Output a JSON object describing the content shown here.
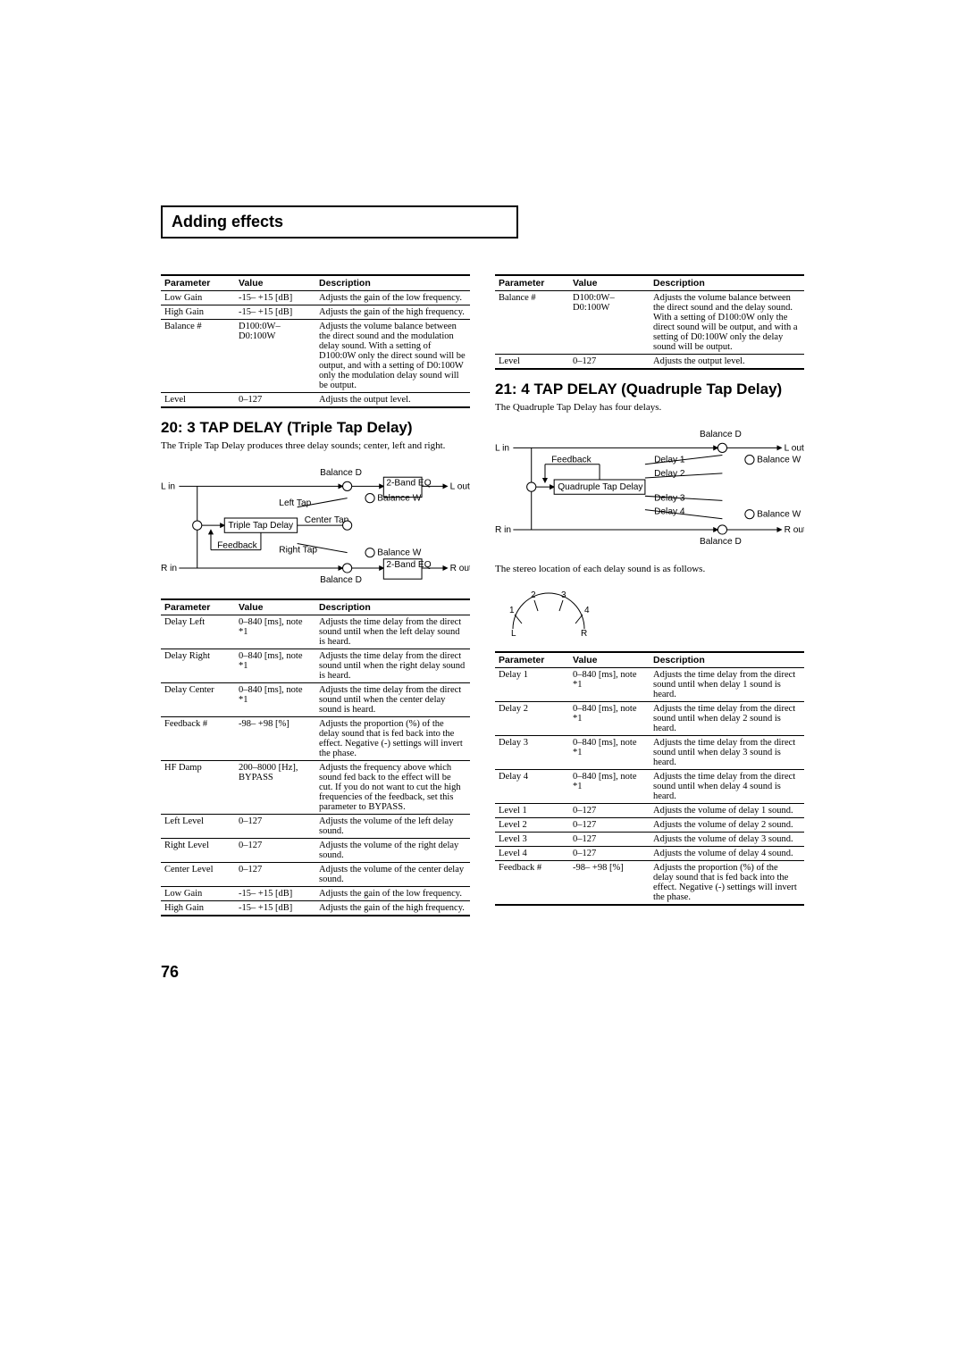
{
  "header": "Adding effects",
  "page_number": "76",
  "left": {
    "table_prev": {
      "headers": [
        "Parameter",
        "Value",
        "Description"
      ],
      "rows": [
        [
          "Low Gain",
          "-15– +15 [dB]",
          "Adjusts the gain of the low frequency."
        ],
        [
          "High Gain",
          "-15– +15 [dB]",
          "Adjusts the gain of the high frequency."
        ],
        [
          "Balance #",
          "D100:0W– D0:100W",
          "Adjusts the volume balance between the direct sound and the modulation delay sound. With a setting of D100:0W only the direct sound will be output, and with a setting of D0:100W only the modulation delay sound will be output."
        ],
        [
          "Level",
          "0–127",
          "Adjusts the output level."
        ]
      ]
    },
    "section_title": "20: 3 TAP DELAY (Triple Tap Delay)",
    "section_intro": "The Triple Tap Delay produces three delay sounds; center, left and right.",
    "diagram20": {
      "labels": {
        "lin": "L in",
        "lout": "L out",
        "rin": "R in",
        "rout": "R out",
        "balD": "Balance D",
        "balW": "Balance W",
        "leftTap": "Left Tap",
        "rightTap": "Right Tap",
        "centerTap": "Center Tap",
        "ttd": "Triple Tap Delay",
        "fb": "Feedback",
        "eq": "2-Band EQ"
      }
    },
    "table20": {
      "headers": [
        "Parameter",
        "Value",
        "Description"
      ],
      "rows": [
        [
          "Delay Left",
          "0–840 [ms], note *1",
          "Adjusts the time delay from the direct sound until when the left delay sound is heard."
        ],
        [
          "Delay Right",
          "0–840 [ms], note *1",
          "Adjusts the time delay from the direct sound until when the right delay sound is heard."
        ],
        [
          "Delay Center",
          "0–840 [ms], note *1",
          "Adjusts the time delay from the direct sound until when the center delay sound is heard."
        ],
        [
          "Feedback #",
          "-98– +98 [%]",
          "Adjusts the proportion (%) of the delay sound that is fed back into the effect. Negative (-) settings will invert the phase."
        ],
        [
          "HF Damp",
          "200–8000 [Hz], BYPASS",
          "Adjusts the frequency above which sound fed back to the effect will be cut. If you do not want to cut the high frequencies of the feedback, set this parameter to BYPASS."
        ],
        [
          "Left Level",
          "0–127",
          "Adjusts the volume of the left delay sound."
        ],
        [
          "Right Level",
          "0–127",
          "Adjusts the volume of the right delay sound."
        ],
        [
          "Center Level",
          "0–127",
          "Adjusts the volume of the center delay sound."
        ],
        [
          "Low Gain",
          "-15– +15 [dB]",
          "Adjusts the gain of the low frequency."
        ],
        [
          "High Gain",
          "-15– +15 [dB]",
          "Adjusts the gain of the high frequency."
        ]
      ]
    }
  },
  "right": {
    "table_cont": {
      "headers": [
        "Parameter",
        "Value",
        "Description"
      ],
      "rows": [
        [
          "Balance #",
          "D100:0W– D0:100W",
          "Adjusts the volume balance between the direct sound and the delay sound. With a setting of D100:0W only the direct sound will be output, and with a setting of D0:100W only the delay sound will be output."
        ],
        [
          "Level",
          "0–127",
          "Adjusts the output level."
        ]
      ]
    },
    "section_title": "21: 4 TAP DELAY (Quadruple Tap Delay)",
    "section_intro": "The Quadruple Tap Delay has four delays.",
    "diagram21": {
      "labels": {
        "lin": "L in",
        "lout": "L out",
        "rin": "R in",
        "rout": "R out",
        "balD": "Balance D",
        "balW": "Balance W",
        "qtd": "Quadruple Tap Delay",
        "fb": "Feedback",
        "d1": "Delay 1",
        "d2": "Delay 2",
        "d3": "Delay 3",
        "d4": "Delay 4"
      }
    },
    "stereo_caption": "The stereo location of each delay sound is as follows.",
    "stereo_diagram": {
      "labels": {
        "1": "1",
        "2": "2",
        "3": "3",
        "4": "4",
        "L": "L",
        "R": "R"
      }
    },
    "table21": {
      "headers": [
        "Parameter",
        "Value",
        "Description"
      ],
      "rows": [
        [
          "Delay 1",
          "0–840 [ms], note *1",
          "Adjusts the time delay from the direct sound until when delay 1 sound is heard."
        ],
        [
          "Delay 2",
          "0–840 [ms], note *1",
          "Adjusts the time delay from the direct sound until when delay 2 sound is heard."
        ],
        [
          "Delay 3",
          "0–840 [ms], note *1",
          "Adjusts the time delay from the direct sound until when delay 3 sound is heard."
        ],
        [
          "Delay 4",
          "0–840 [ms], note *1",
          "Adjusts the time delay from the direct sound until when delay 4 sound is heard."
        ],
        [
          "Level 1",
          "0–127",
          "Adjusts the volume of delay 1 sound."
        ],
        [
          "Level 2",
          "0–127",
          "Adjusts the volume of delay 2 sound."
        ],
        [
          "Level 3",
          "0–127",
          "Adjusts the volume of delay 3 sound."
        ],
        [
          "Level 4",
          "0–127",
          "Adjusts the volume of delay 4 sound."
        ],
        [
          "Feedback #",
          "-98– +98 [%]",
          "Adjusts the proportion (%) of the delay sound that is fed back into the effect. Negative (-) settings will invert the phase."
        ]
      ]
    }
  }
}
